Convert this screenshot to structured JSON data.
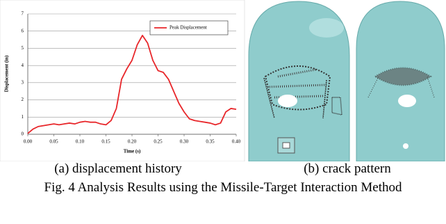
{
  "chart_data": {
    "type": "line",
    "x_label": "Time (s)",
    "y_label": "Displacement (in)",
    "x": [
      0,
      0.01,
      0.02,
      0.03,
      0.04,
      0.05,
      0.06,
      0.07,
      0.08,
      0.09,
      0.1,
      0.11,
      0.12,
      0.13,
      0.14,
      0.15,
      0.16,
      0.17,
      0.18,
      0.19,
      0.2,
      0.21,
      0.22,
      0.23,
      0.24,
      0.25,
      0.26,
      0.27,
      0.28,
      0.29,
      0.3,
      0.31,
      0.32,
      0.33,
      0.34,
      0.35,
      0.36,
      0.37,
      0.38,
      0.39,
      0.4
    ],
    "series": [
      {
        "name": "Peak Displacement",
        "color": "#e8262a",
        "values": [
          0.05,
          0.3,
          0.45,
          0.5,
          0.55,
          0.6,
          0.55,
          0.6,
          0.65,
          0.6,
          0.7,
          0.75,
          0.7,
          0.7,
          0.6,
          0.55,
          0.8,
          1.5,
          3.2,
          3.8,
          4.3,
          5.2,
          5.75,
          5.3,
          4.3,
          3.7,
          3.6,
          3.2,
          2.5,
          1.8,
          1.3,
          0.9,
          0.8,
          0.75,
          0.7,
          0.65,
          0.55,
          0.65,
          1.3,
          1.5,
          1.45
        ]
      }
    ],
    "xlim": [
      0,
      0.4
    ],
    "ylim": [
      0,
      7
    ],
    "xticks": [
      {
        "value": 0,
        "label": "0.00"
      },
      0.05,
      {
        "value": 0.1,
        "label": "0.10"
      },
      0.15,
      {
        "value": 0.2,
        "label": "0.20"
      },
      0.25,
      {
        "value": 0.3,
        "label": "0.30"
      },
      0.35,
      {
        "value": 0.4,
        "label": "0.40"
      }
    ],
    "yticks": [
      0,
      1,
      2,
      3,
      4,
      5,
      6,
      7
    ],
    "grid": true,
    "legend": "upper right"
  },
  "captions": {
    "a": "(a) displacement history",
    "b": "(b) crack pattern",
    "figure": "Fig. 4 Analysis Results using the Missile-Target Interaction Method"
  }
}
